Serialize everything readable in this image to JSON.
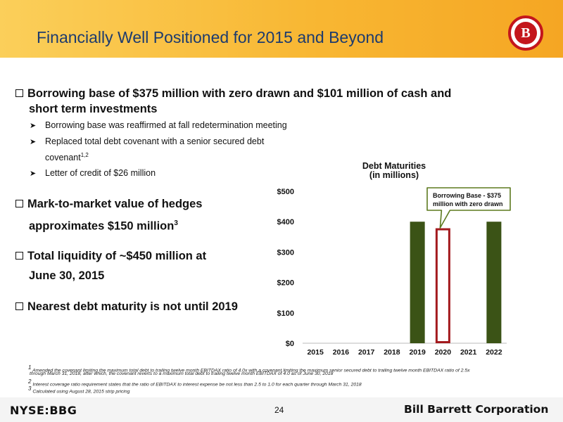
{
  "header": {
    "title": "Financially Well Positioned for 2015 and Beyond",
    "logo_letter": "B"
  },
  "bullets": {
    "b1_line1": "Borrowing base of $375 million with zero drawn and $101 million of cash and",
    "b1_line2": "short term investments",
    "sub1": "Borrowing base was reaffirmed at fall redetermination meeting",
    "sub2": "Replaced total debt covenant with a senior secured debt",
    "sub2_cont": "covenant",
    "sub2_sup": "1,2",
    "sub3": "Letter of credit of $26 million",
    "b2_line1": "Mark-to-market value of hedges",
    "b2_line2": "approximates $150 million",
    "b2_sup": "3",
    "b3_line1": "Total liquidity of ~$450 million at",
    "b3_line2": "June 30, 2015",
    "b4": "Nearest debt maturity is not until 2019"
  },
  "chart_data": {
    "type": "bar",
    "title": "Debt Maturities",
    "subtitle": "(in millions)",
    "categories": [
      "2015",
      "2016",
      "2017",
      "2018",
      "2019",
      "2020",
      "2021",
      "2022"
    ],
    "series": [
      {
        "values": [
          0,
          0,
          0,
          0,
          400,
          0,
          0,
          400
        ]
      }
    ],
    "borrowing_base": {
      "category": "2020",
      "value": 375
    },
    "ylim": [
      0,
      500
    ],
    "yticks": [
      0,
      100,
      200,
      300,
      400,
      500
    ],
    "ytick_labels": [
      "$0",
      "$100",
      "$200",
      "$300",
      "$400",
      "$500"
    ],
    "callout": "Borrowing Base - $375 million with zero drawn",
    "bar_color": "#3b5316",
    "outline_color": "#a31a1e",
    "callout_border": "#5d7a1f",
    "grid": false
  },
  "footnotes": {
    "f1_line1": "Amended the covenant limiting the maximum total debt to trailing twelve month EBITDAX ratio of 4.0x with a covenant limiting the maximum senior secured debt to trailing twelve month EBITDAX ratio of 2.5x",
    "f1_line2": "through March 31, 2018, after which, the covenant reverts to a maximum total debt to trailing twelve month EBITDAX of 4.0 as of June 30, 2018",
    "f2": "Interest coverage ratio requirement states that the ratio of EBITDAX to interest expense be not less than 2.5 to 1.0 for each quarter through March 31, 2018",
    "f3": "Calculated using August 28, 2015 strip pricing",
    "f1_num": "1",
    "f2_num": "2",
    "f3_num": "3"
  },
  "footer": {
    "ticker": "NYSE:BBG",
    "page": "24",
    "company": "Bill Barrett Corporation"
  }
}
